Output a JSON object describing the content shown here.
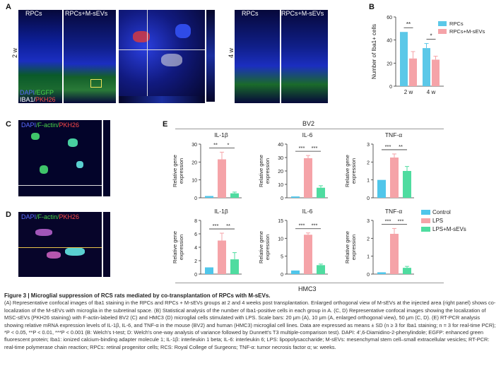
{
  "panel_labels": {
    "A": "A",
    "B": "B",
    "C": "C",
    "D": "D",
    "E": "E"
  },
  "panelA": {
    "top_left": "RPCs",
    "top_right": "RPCs+M-sEVs",
    "side_label": "2 w",
    "stain_dapi": "DAPI",
    "stain_egfp": "/EGFP",
    "stain_iba1": "IBA1/",
    "stain_pkh": "PKH26"
  },
  "panelA4w": {
    "top_left": "RPCs",
    "top_right": "RPCs+M-sEVs",
    "side_label": "4 w"
  },
  "panelC": {
    "stain_dapi": "DAPI",
    "stain_f": "/F-actin/",
    "stain_pkh": "PKH26"
  },
  "panelD": {
    "stain_dapi": "DAPI",
    "stain_f": "/F-actin/",
    "stain_pkh": "PKH26"
  },
  "colors": {
    "rpcs": "#5bc8e8",
    "msevs": "#f5a3a8",
    "lps": "#f5a3a8",
    "control": "#4fc6ea",
    "lps_msevs": "#4fdca0"
  },
  "chart_data": [
    {
      "type": "bar",
      "panel": "B",
      "categories": [
        "2 w",
        "4 w"
      ],
      "series": [
        {
          "name": "RPCs",
          "values": [
            47,
            33
          ],
          "err": [
            0,
            4
          ]
        },
        {
          "name": "RPCs+M-sEVs",
          "values": [
            24,
            23
          ],
          "err": [
            6,
            3
          ]
        }
      ],
      "ylabel": "Number of Iba1+ cells",
      "ylim": [
        0,
        60
      ],
      "yticks": [
        "0",
        "20",
        "40",
        "60"
      ],
      "sig": [
        "**",
        "*"
      ]
    },
    {
      "type": "bar",
      "panel": "E-BV2",
      "title": "IL-1β",
      "ylabel": "Relative gene expression",
      "ylim": [
        0,
        30
      ],
      "yticks": [
        "0",
        "10",
        "20",
        "30"
      ],
      "values": [
        1,
        21.5,
        2.5
      ],
      "err": [
        0,
        4,
        0.7
      ],
      "sig": [
        "**",
        "*"
      ]
    },
    {
      "type": "bar",
      "panel": "E-BV2",
      "title": "IL-6",
      "ylabel": "Relative gene expression",
      "ylim": [
        0,
        40
      ],
      "yticks": [
        "0",
        "10",
        "20",
        "30",
        "40"
      ],
      "values": [
        1,
        29.5,
        7.5
      ],
      "err": [
        0,
        2,
        1.5
      ],
      "sig": [
        "***",
        "***"
      ]
    },
    {
      "type": "bar",
      "panel": "E-BV2",
      "title": "TNF-α",
      "ylabel": "Relative gene expression",
      "ylim": [
        0,
        3
      ],
      "yticks": [
        "0",
        "1",
        "2",
        "3"
      ],
      "values": [
        1,
        2.25,
        1.5
      ],
      "err": [
        0,
        0.2,
        0.25
      ],
      "sig": [
        "***",
        "**"
      ]
    },
    {
      "type": "bar",
      "panel": "E-HMC3",
      "title": "IL-1β",
      "ylabel": "Relative gene expression",
      "ylim": [
        0,
        8
      ],
      "yticks": [
        "0",
        "2",
        "4",
        "6",
        "8"
      ],
      "values": [
        1,
        5,
        2.2
      ],
      "err": [
        0,
        1.1,
        1
      ],
      "sig": [
        "***",
        "**"
      ]
    },
    {
      "type": "bar",
      "panel": "E-HMC3",
      "title": "IL-6",
      "ylabel": "Relative gene expression",
      "ylim": [
        0,
        15
      ],
      "yticks": [
        "0",
        "5",
        "10",
        "15"
      ],
      "values": [
        1,
        11,
        2.5
      ],
      "err": [
        0,
        0.5,
        0.3
      ],
      "sig": [
        "***",
        "***"
      ]
    },
    {
      "type": "bar",
      "panel": "E-HMC3",
      "title": "TNF-α",
      "ylabel": "Relative gene expression",
      "ylim": [
        0,
        3
      ],
      "yticks": [
        "0",
        "1",
        "2",
        "3"
      ],
      "values": [
        0.1,
        2.25,
        0.35
      ],
      "err": [
        0,
        0.3,
        0.08
      ],
      "sig": [
        "***",
        "***"
      ]
    }
  ],
  "panelE": {
    "bv2_label": "BV2",
    "hmc3_label": "HMC3"
  },
  "legendB": [
    "RPCs",
    "RPCs+M-sEVs"
  ],
  "legendE": [
    "Control",
    "LPS",
    "LPS+M-sEVs"
  ],
  "caption": {
    "title": "Figure 3 | Microglial suppression of RCS rats mediated by co-transplantation of RPCs with M-sEVs.",
    "body": "(A) Representative confocal images of Iba1 staining in the RPCs and RPCs + M-sEVs groups at 2 and 4 weeks post transplantation. Enlarged orthogonal view of M-sEVs at the injected area (right panel) shows co-localization of the M-sEVs with microglia in the subretinal space. (B) Statistical analysis of the number of Iba1-positive cells in each group in A. (C, D) Representative confocal images showing the localization of MSC-sEVs (PKH26 staining) with F-actin-labeled BV2 (C) and HMC3 (D) microglial cells stimulated with LPS. Scale bars: 20 μm (A), 10 μm (A, enlarged orthogonal view), 50 μm (C, D). (E) RT-PCR analysis showing relative mRNA expression levels of IL-1β, IL-6, and TNF-α in the mouse (BV2) and human (HMC3) microglial cell lines. Data are expressed as means ± SD (n ≥ 3 for Iba1 staining; n = 3 for real-time PCR); *P < 0.05, **P < 0.01, ***P < 0.001 (B: Welch's t-test; D: Welch's one-way analysis of variance followed by Dunnett's T3 multiple-comparison test). DAPI: 4',6-Diamidino-2-phenylindole; EGFP: enhanced green fluorescent protein; Iba1: ionized calcium-binding adapter molecule 1; IL-1β: interleukin 1 beta; IL-6: interleukin 6; LPS: lipopolysaccharide; M-sEVs: mesenchymal stem cell–small extracellular vesicles; RT-PCR: real-time polymerase chain reaction; RPCs: retinal progenitor cells; RCS: Royal College of Surgeons; TNF-α: tumor necrosis factor α; w: weeks."
  }
}
